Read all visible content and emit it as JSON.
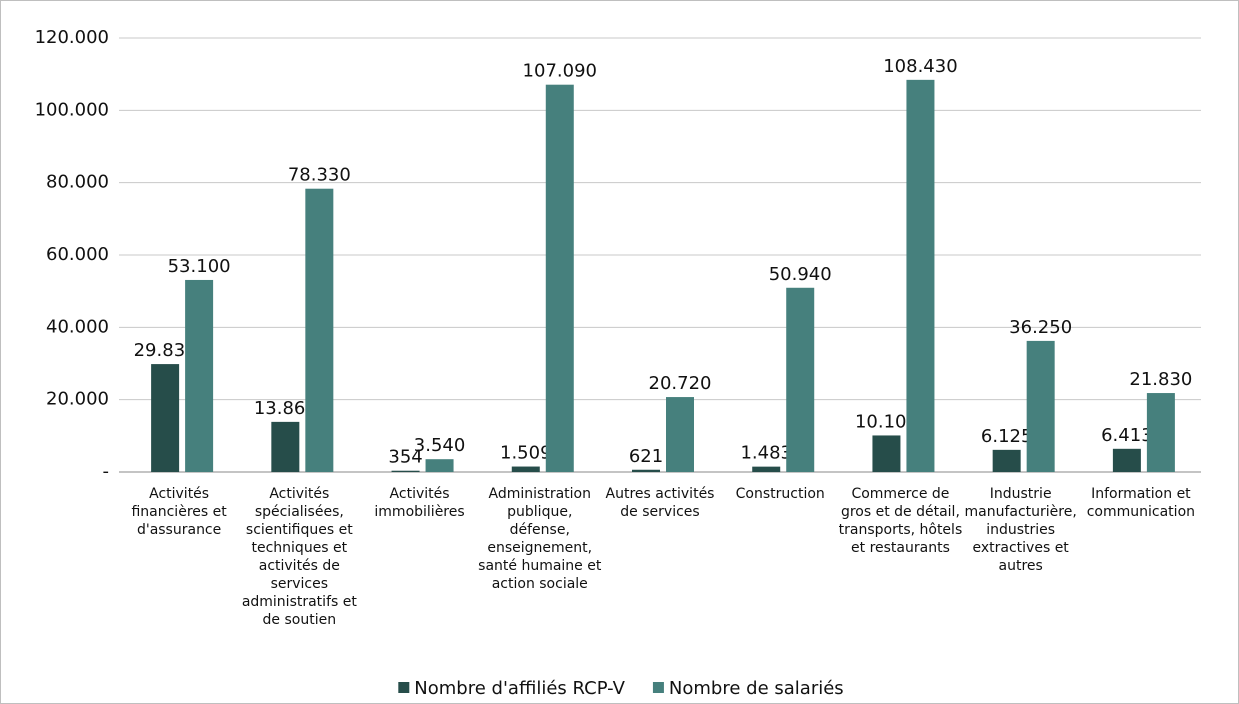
{
  "chart_data": {
    "type": "bar",
    "categories": [
      "Activités financières et d'assurance",
      "Activités spécialisées, scientifiques et techniques et activités de services administratifs et de soutien",
      "Activités immobilières",
      "Administration publique, défense, enseignement, santé humaine et action sociale",
      "Autres activités de services",
      "Construction",
      "Commerce de gros et de détail, transports, hôtels et restaurants",
      "Industrie manufacturière, industries extractives et autres",
      "Information et communication"
    ],
    "series": [
      {
        "name": "Nombre d'affiliés RCP-V",
        "color": "#264d4a",
        "values": [
          29837,
          13860,
          354,
          1509,
          621,
          1483,
          10105,
          6125,
          6413
        ],
        "value_labels": [
          "29.837",
          "13.860",
          "354",
          "1.509",
          "621",
          "1.483",
          "10.105",
          "6.125",
          "6.413"
        ]
      },
      {
        "name": "Nombre de salariés",
        "color": "#46807d",
        "values": [
          53100,
          78330,
          3540,
          107090,
          20720,
          50940,
          108430,
          36250,
          21830
        ],
        "value_labels": [
          "53.100",
          "78.330",
          "3.540",
          "107.090",
          "20.720",
          "50.940",
          "108.430",
          "36.250",
          "21.830"
        ]
      }
    ],
    "ylim": [
      0,
      120000
    ],
    "yticks": [
      {
        "value": 0,
        "label": "-"
      },
      {
        "value": 20000,
        "label": "20.000"
      },
      {
        "value": 40000,
        "label": "40.000"
      },
      {
        "value": 60000,
        "label": "60.000"
      },
      {
        "value": 80000,
        "label": "80.000"
      },
      {
        "value": 100000,
        "label": "100.000"
      },
      {
        "value": 120000,
        "label": "120.000"
      }
    ],
    "grid": true,
    "legend": "bottom"
  }
}
